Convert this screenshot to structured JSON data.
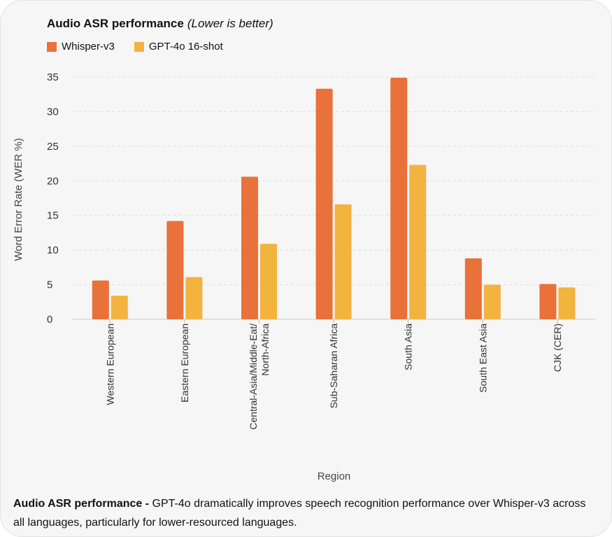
{
  "chart_data": {
    "type": "bar",
    "title": "Audio ASR performance",
    "subtitle": "(Lower is better)",
    "xlabel": "Region",
    "ylabel": "Word Error Rate (WER %)",
    "ylim": [
      0,
      35
    ],
    "yticks": [
      0,
      5,
      10,
      15,
      20,
      25,
      30,
      35
    ],
    "grid": true,
    "legend_position": "top-left",
    "categories": [
      [
        "Western European"
      ],
      [
        "Eastern European"
      ],
      [
        "Central-Asia/Middle-Eat/",
        "North-Africa"
      ],
      [
        "Sub-Saharan Africa"
      ],
      [
        "South Asia"
      ],
      [
        "South East Asia"
      ],
      [
        "CJK (CER)"
      ]
    ],
    "series": [
      {
        "name": "Whisper-v3",
        "color": "#e8723a",
        "values": [
          5.6,
          14.2,
          20.6,
          33.3,
          34.9,
          8.8,
          5.1
        ]
      },
      {
        "name": "GPT-4o 16-shot",
        "color": "#f3b33f",
        "values": [
          3.4,
          6.1,
          10.9,
          16.6,
          22.3,
          5.0,
          4.6
        ]
      }
    ]
  },
  "caption": {
    "bold": "Audio ASR performance -",
    "text": " GPT-4o dramatically improves speech recognition performance over Whisper-v3 across all languages, particularly for lower-resourced languages."
  }
}
